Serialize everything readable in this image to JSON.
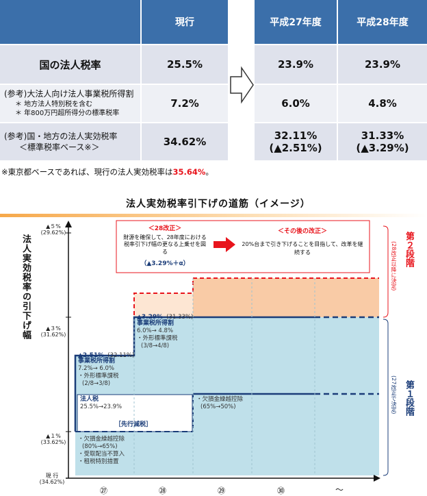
{
  "table": {
    "headers": {
      "current": "現行",
      "h27": "平成27年度",
      "h28": "平成28年度"
    },
    "rows": [
      {
        "label": "国の法人税率",
        "current": "25.5%",
        "h27": "23.9%",
        "h28": "23.9%"
      },
      {
        "label": "(参考)大法人向け法人事業税所得割",
        "sub1": "＊  地方法人特別税を含む",
        "sub2": "＊  年800万円超所得分の標準税率",
        "current": "7.2%",
        "h27": "6.0%",
        "h28": "4.8%"
      },
      {
        "label": "(参考)国・地方の法人実効税率",
        "label2": "＜標準税率ベース※＞",
        "current": "34.62%",
        "h27": "32.11%",
        "h27_sub": "(▲2.51%)",
        "h28": "31.33%",
        "h28_sub": "(▲3.29%)"
      }
    ]
  },
  "footnote": {
    "text": "※東京都ベースであれば、現行の法人実効税率は",
    "value": "35.64%",
    "end": "。"
  },
  "diagram": {
    "title": "法人実効税率引下げの道筋（イメージ）",
    "y_axis_title": "法人実効税率の引下げ幅",
    "y_ticks": [
      {
        "label": "▲５%",
        "sub": "(29.62%)"
      },
      {
        "label": "▲３%",
        "sub": "(31.62%)"
      },
      {
        "label": "▲１%",
        "sub": "(33.62%)"
      },
      {
        "label": "現 行",
        "sub": "(34.62%)"
      }
    ],
    "x_ticks": [
      "㉗",
      "㉘",
      "㉙",
      "㉚",
      "～"
    ],
    "reform28": {
      "head": "＜28改正＞",
      "body": "財源を確保して、28年度における税率引下げ幅の更なる上乗せを図る",
      "amount": "（▲3.29%＋α）"
    },
    "reform_after": {
      "head": "＜その後の改正＞",
      "body": "20%台まで引き下げることを目指して、改革を継続する"
    },
    "stage2": "第２段階",
    "stage2_note": "(28改正以降に決定)",
    "stage1": "第１段階",
    "stage1_note": "(27改正で決定)",
    "mark_327": "▲3.29%",
    "mark_327_sub": "(31.33%)",
    "mark_251": "▲2.51%",
    "mark_251_sub": "(32.11%)",
    "jigyo28_title": "事業税所得割",
    "jigyo28_val": "6.0%→ 4.8%",
    "jigyo28_sub": "・外形標準課税",
    "jigyo28_sub2": "(3/8→4/8)",
    "jigyo27_title": "事業税所得割",
    "jigyo27_val": "7.2%→ 6.0%",
    "jigyo27_sub": "・外形標準課税",
    "jigyo27_sub2": "(2/8→3/8)",
    "hojin_title": "法人税",
    "hojin_val": "25.5%→23.9%",
    "sengen": "［先行減税］",
    "kesson_title": "・欠損金繰越控除",
    "kesson_val": "(65%→50%)",
    "kesson27_a": "・欠損金繰越控除",
    "kesson27_b": "(80%→65%)",
    "kesson27_c": "・受取配当不算入",
    "kesson27_d": "・租税特別措置"
  }
}
